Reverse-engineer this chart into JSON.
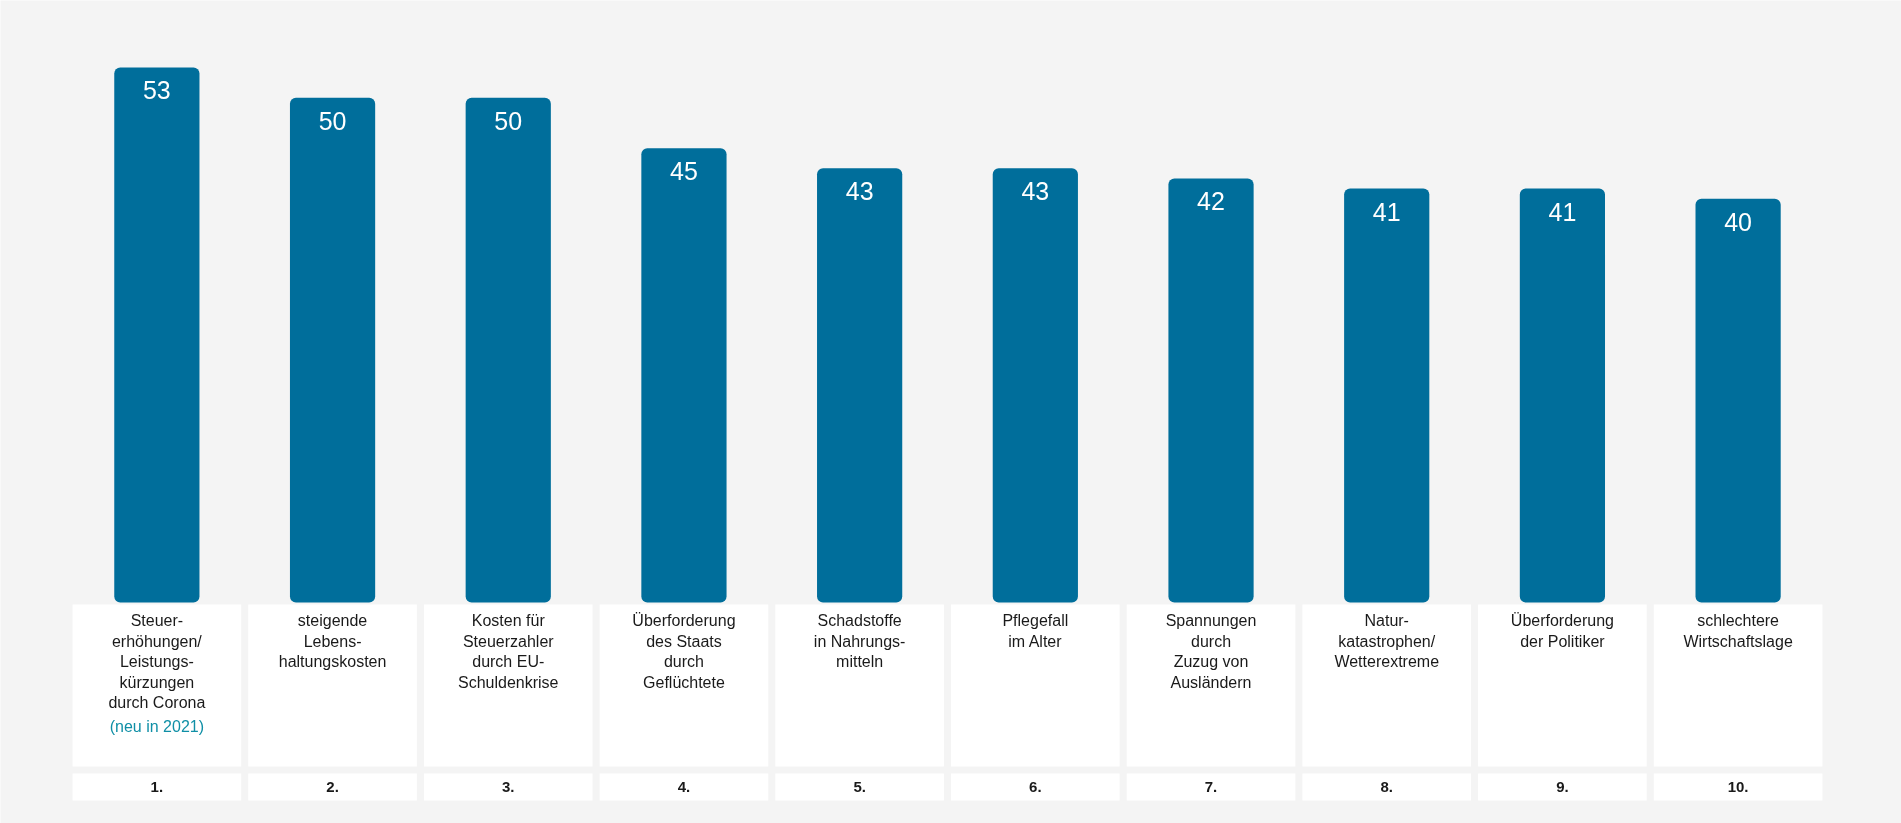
{
  "chart_data": {
    "type": "bar",
    "categories": [
      "Steuer-\nerhöhungen/\nLeistungs-\nkürzungen\ndurch Corona",
      "steigende\nLebens-\nhaltungskosten",
      "Kosten für\nSteuerzahler\ndurch EU-\nSchuldenkrise",
      "Überforderung\ndes Staats\ndurch\nGeflüchtete",
      "Schadstoffe\nin Nahrungs-\nmitteln",
      "Pflegefall\nim Alter",
      "Spannungen\ndurch\nZuzug von\nAusländern",
      "Natur-\nkatastrophen/\nWetterextreme",
      "Überforderung\nder Politiker",
      "schlechtere\nWirtschaftslage"
    ],
    "values": [
      53,
      50,
      50,
      45,
      43,
      43,
      42,
      41,
      41,
      40
    ],
    "color": "#006e9b",
    "data_labels": true,
    "annotations": [
      "(neu in 2021)",
      "1.",
      "2.",
      "3.",
      "4.",
      "5.",
      "6.",
      "7.",
      "8.",
      "9.",
      "10."
    ]
  }
}
